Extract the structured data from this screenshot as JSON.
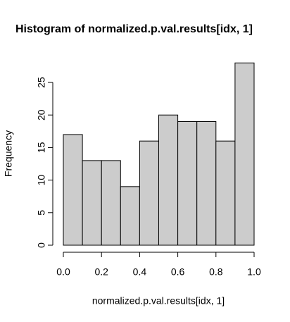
{
  "chart_data": {
    "type": "histogram",
    "title": "Histogram of normalized.p.val.results[idx, 1]",
    "xlabel": "normalized.p.val.results[idx, 1]",
    "ylabel": "Frequency",
    "bins": [
      0,
      0.1,
      0.2,
      0.3,
      0.4,
      0.5,
      0.6,
      0.7,
      0.8,
      0.9,
      1
    ],
    "values": [
      17,
      13,
      13,
      9,
      16,
      20,
      19,
      19,
      16,
      28
    ],
    "color": "#cccccc",
    "xlim": [
      0,
      1
    ],
    "ylim": [
      0,
      28
    ],
    "xticks": [
      {
        "value": 0,
        "label": "0.0"
      },
      {
        "value": 0.2,
        "label": "0.2"
      },
      {
        "value": 0.4,
        "label": "0.4"
      },
      {
        "value": 0.6,
        "label": "0.6"
      },
      {
        "value": 0.8,
        "label": "0.8"
      },
      {
        "value": 1,
        "label": "1.0"
      }
    ],
    "yticks": [
      0,
      5,
      10,
      15,
      20,
      25
    ]
  }
}
